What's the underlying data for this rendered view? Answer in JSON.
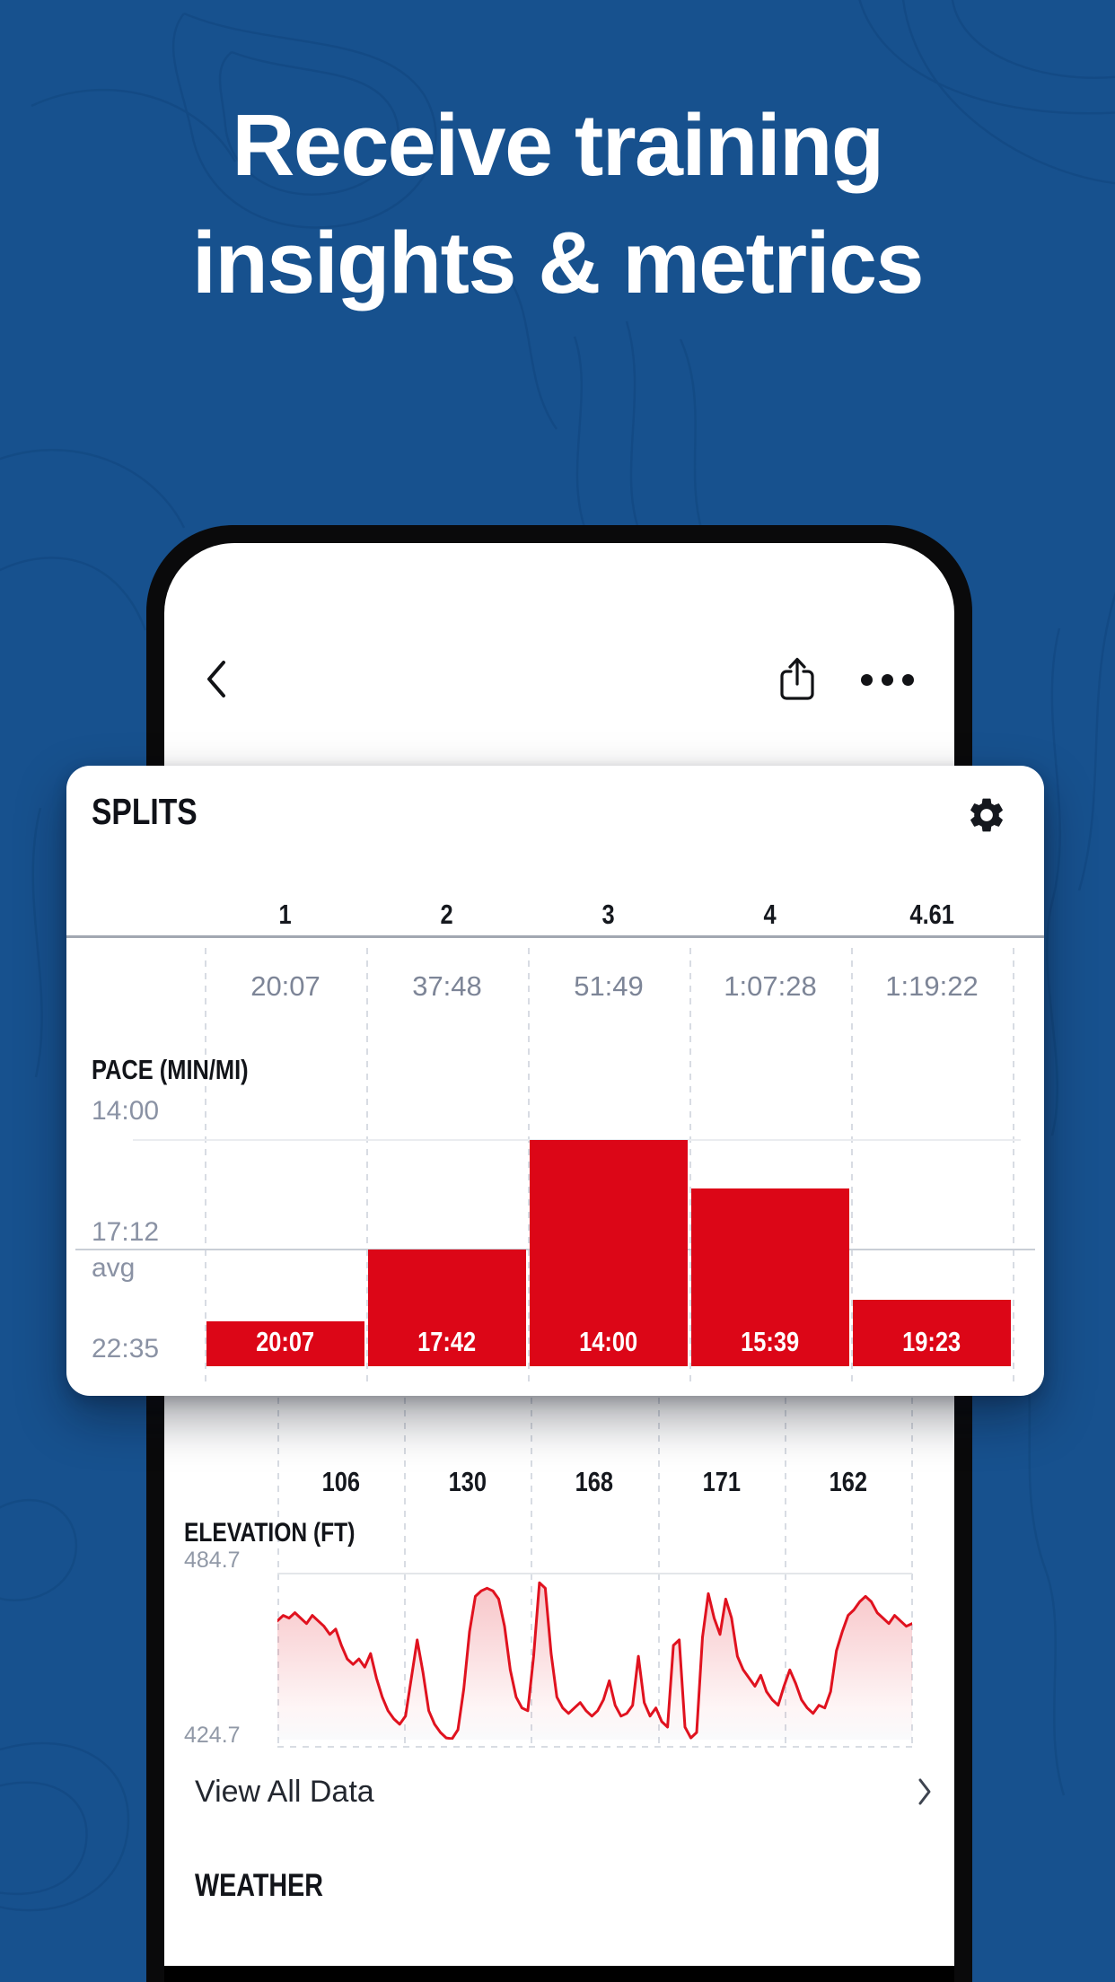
{
  "title": {
    "line1": "Receive training",
    "line2": "insights & metrics"
  },
  "colors": {
    "background": "#17518E",
    "contour": "#0E4279",
    "accent_red": "#DC0617",
    "elevation_line": "#E0121F",
    "card_bg": "#FFFFFF",
    "text_dark": "#15181E",
    "text_gray": "#7D8597",
    "axis_gray": "#8A92A4",
    "grid_solid": "#E3E6EA",
    "grid_dashed": "#D8DCE3",
    "avg_line": "#C9CED6",
    "divider": "#A2A8B1"
  },
  "phone": {
    "nav": {
      "back_icon": "chevron-left-icon",
      "share_icon": "share-icon",
      "more_icon": "ellipsis-icon"
    }
  },
  "splits_card": {
    "title": "SPLITS",
    "settings_icon": "gear-icon"
  },
  "view_all": {
    "label": "View All Data",
    "chevron_icon": "chevron-right-icon"
  },
  "weather": {
    "label": "WEATHER"
  },
  "chart_data": [
    {
      "id": "splits-pace",
      "type": "bar",
      "title": "SPLITS",
      "categories": [
        "1",
        "2",
        "3",
        "4",
        "4.61"
      ],
      "cumulative_times": [
        "20:07",
        "37:48",
        "51:49",
        "1:07:28",
        "1:19:22"
      ],
      "series": [
        {
          "name": "PACE (MIN/MI)",
          "values": [
            "20:07",
            "17:42",
            "14:00",
            "15:39",
            "19:23"
          ],
          "values_seconds": [
            1207,
            1062,
            840,
            939,
            1163
          ]
        }
      ],
      "ylabel": "PACE (MIN/MI)",
      "y_ticks": [
        "14:00",
        "17:12",
        "avg",
        "22:35"
      ],
      "avg_pace": "17:12",
      "axis_note": "inverted pace axis — faster pace draws taller bar",
      "bar_color": "#DC0617"
    },
    {
      "id": "elevation",
      "type": "area",
      "ylabel": "ELEVATION (FT)",
      "split_values": [
        "106",
        "130",
        "168",
        "171",
        "162"
      ],
      "y_max_label": "484.7",
      "y_min_label": "424.7",
      "ylim": [
        424.7,
        484.7
      ],
      "line_color": "#E0121F",
      "profile_ft": [
        468,
        470,
        469,
        471,
        469,
        467,
        470,
        468,
        466,
        463,
        465,
        459,
        454,
        452,
        454,
        451,
        456,
        447,
        440,
        435,
        432,
        430,
        433,
        447,
        461,
        449,
        435,
        430,
        427,
        425,
        424.7,
        428,
        443,
        464,
        477,
        479,
        480,
        479,
        476,
        466,
        450,
        440,
        436,
        435,
        455,
        482,
        480,
        456,
        440,
        436,
        434,
        436,
        438,
        435,
        433,
        435,
        439,
        446,
        437,
        433,
        434,
        437,
        455,
        438,
        433,
        436,
        431,
        429,
        459,
        461,
        429,
        425,
        427,
        462,
        478,
        469,
        463,
        476,
        469,
        455,
        450,
        447,
        444,
        448,
        442,
        439,
        437,
        444,
        450,
        445,
        439,
        436,
        434,
        437,
        436,
        442,
        457,
        464,
        470,
        472,
        475,
        477,
        475,
        471,
        469,
        467,
        470,
        468,
        466,
        467
      ]
    }
  ]
}
